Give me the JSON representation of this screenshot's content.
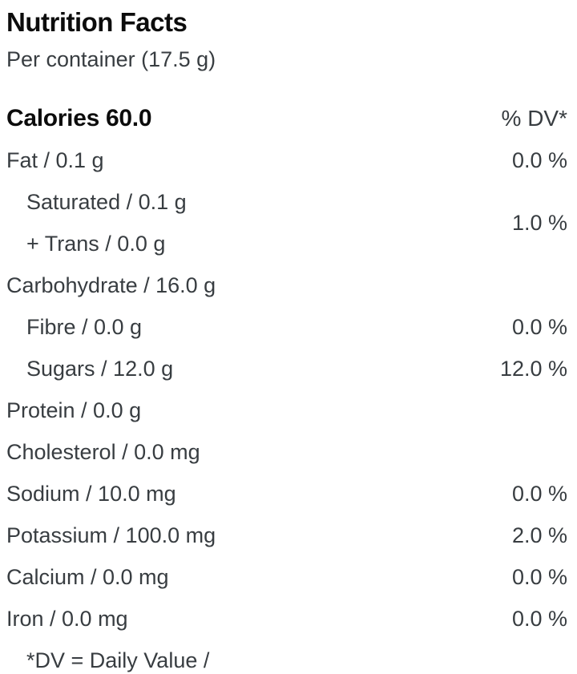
{
  "nutrition": {
    "title": "Nutrition Facts",
    "serving": "Per container (17.5 g)",
    "calories_label": "Calories 60.0",
    "dv_header": "% DV*",
    "fat": {
      "name": "Fat / 0.1 g",
      "dv": "0.0 %"
    },
    "sat_trans": {
      "line1": "Saturated / 0.1 g",
      "line2": "+ Trans / 0.0 g",
      "dv": "1.0 %"
    },
    "rows": [
      {
        "name": "Carbohydrate / 16.0 g",
        "dv": ""
      },
      {
        "name": "Fibre / 0.0 g",
        "dv": "0.0 %"
      },
      {
        "name": "Sugars / 12.0 g",
        "dv": "12.0 %"
      },
      {
        "name": "Protein / 0.0 g",
        "dv": ""
      },
      {
        "name": "Cholesterol / 0.0 mg",
        "dv": ""
      },
      {
        "name": "Sodium / 10.0 mg",
        "dv": "0.0 %"
      },
      {
        "name": "Potassium / 100.0 mg",
        "dv": "2.0 %"
      },
      {
        "name": "Calcium / 0.0 mg",
        "dv": "0.0 %"
      },
      {
        "name": "Iron / 0.0 mg",
        "dv": "0.0 %"
      }
    ],
    "footnote": "*DV = Daily Value /",
    "colors": {
      "heading": "#0c0c0c",
      "body": "#383d41",
      "background": "#ffffff"
    }
  }
}
